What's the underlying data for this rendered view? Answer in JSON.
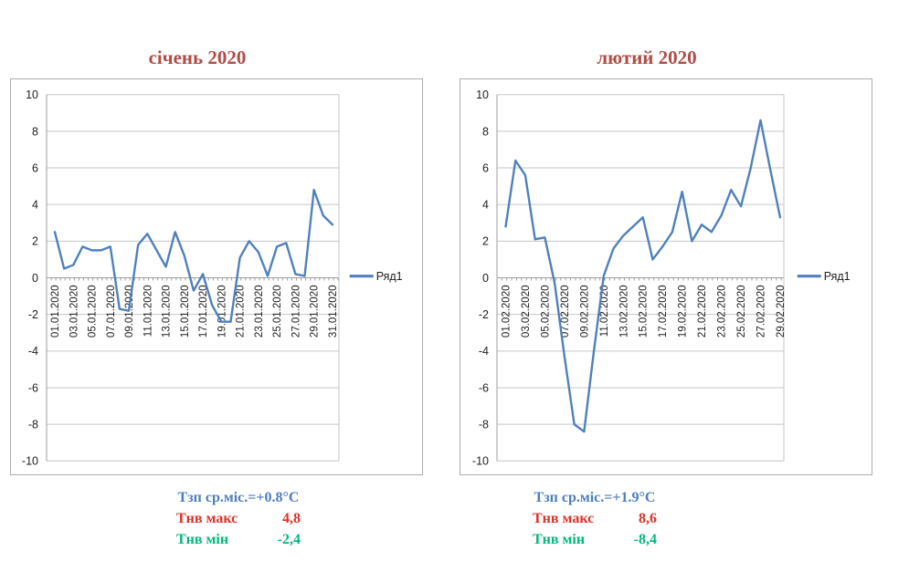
{
  "chart_data": [
    {
      "type": "line",
      "title": "січень 2020",
      "series": [
        {
          "name": "Ряд1",
          "values": [
            2.5,
            0.5,
            0.7,
            1.7,
            1.5,
            1.5,
            1.7,
            -1.7,
            -1.8,
            1.8,
            2.4,
            1.5,
            0.6,
            2.5,
            1.2,
            -0.7,
            0.2,
            -1.5,
            -2.4,
            -2.4,
            1.1,
            2.0,
            1.4,
            0.1,
            1.7,
            1.9,
            0.2,
            0.1,
            4.8,
            3.4,
            2.9
          ]
        }
      ],
      "n_points": 31,
      "x_tick_labels": [
        "01.01.2020",
        "03.01.2020",
        "05.01.2020",
        "07.01.2020",
        "09.01.2020",
        "11.01.2020",
        "13.01.2020",
        "15.01.2020",
        "17.01.2020",
        "19.01.2020",
        "21.01.2020",
        "23.01.2020",
        "25.01.2020",
        "27.01.2020",
        "29.01.2020",
        "31.01.2020"
      ],
      "ylim": [
        -10,
        10
      ],
      "ytick_step": 2,
      "grid": true,
      "legend_position": "right",
      "annotations": {
        "avg": "Тзп ср.міс.=+0.8°С",
        "max_label": "Тнв макс",
        "max_value": "4,8",
        "min_label": "Тнв мін",
        "min_value": "-2,4"
      }
    },
    {
      "type": "line",
      "title": "лютий 2020",
      "series": [
        {
          "name": "Ряд1",
          "values": [
            2.8,
            6.4,
            5.6,
            2.1,
            2.2,
            -0.3,
            -4.3,
            -8.0,
            -8.4,
            -4.0,
            0.1,
            1.6,
            2.3,
            2.8,
            3.3,
            1.0,
            1.7,
            2.5,
            4.7,
            2.0,
            2.9,
            2.5,
            3.4,
            4.8,
            3.9,
            6.0,
            8.6,
            5.9,
            3.3
          ]
        }
      ],
      "n_points": 29,
      "x_tick_labels": [
        "01.02.2020",
        "03.02.2020",
        "05.02.2020",
        "07.02.2020",
        "09.02.2020",
        "11.02.2020",
        "13.02.2020",
        "15.02.2020",
        "17.02.2020",
        "19.02.2020",
        "21.02.2020",
        "23.02.2020",
        "25.02.2020",
        "27.02.2020",
        "29.02.2020"
      ],
      "ylim": [
        -10,
        10
      ],
      "ytick_step": 2,
      "grid": true,
      "legend_position": "right",
      "annotations": {
        "avg": "Тзп ср.міс.=+1.9°С",
        "max_label": "Тнв макс",
        "max_value": "8,6",
        "min_label": "Тнв мін",
        "min_value": "-8,4"
      }
    }
  ],
  "colors": {
    "series_line": "#4F81BD",
    "chart_title": "#AF4C46",
    "avg_text": "#4D7EBE",
    "max_text": "#E03028",
    "min_text": "#00B87E",
    "gridline": "#C6C6C6",
    "axis": "#9E9E9E",
    "chart_border": "#ACACAC",
    "tick_text": "#1F1F1F"
  }
}
